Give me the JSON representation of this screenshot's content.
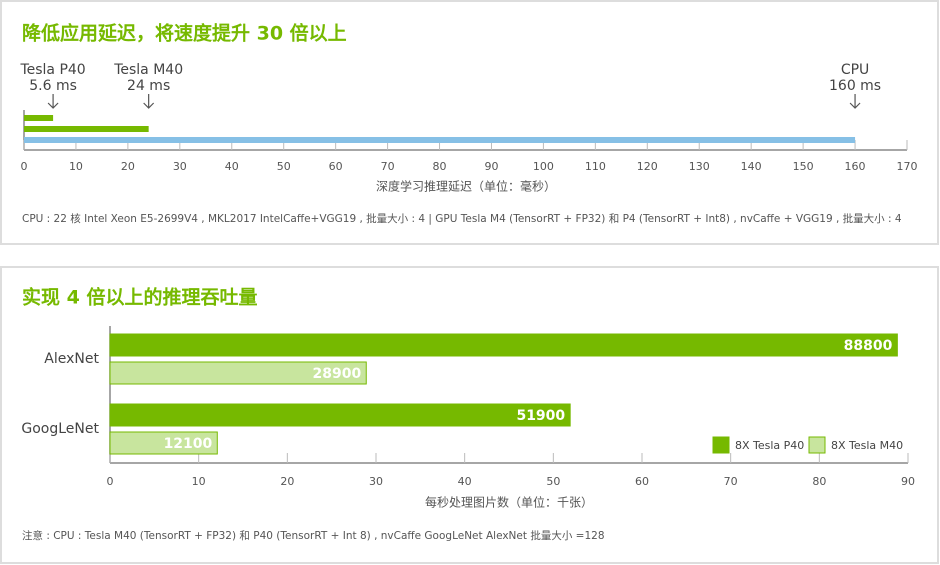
{
  "chart_data": [
    {
      "type": "bar",
      "orientation": "horizontal",
      "title": "降低应用延迟，将速度提升 30 倍以上",
      "categories": [
        "Tesla P40",
        "Tesla M40",
        "CPU"
      ],
      "values": [
        5.6,
        24,
        160
      ],
      "value_labels": [
        "5.6 ms",
        "24 ms",
        "160 ms"
      ],
      "colors": [
        "#76b900",
        "#76b900",
        "#86c0e6"
      ],
      "xlim": [
        0,
        170
      ],
      "xticks": [
        0,
        10,
        20,
        30,
        40,
        50,
        60,
        70,
        80,
        90,
        100,
        110,
        120,
        130,
        140,
        150,
        160,
        170
      ],
      "xlabel": "深度学习推理延迟（单位：毫秒）",
      "note": "CPU : 22 核 Intel Xeon E5-2699V4 , MKL2017 IntelCaffe+VGG19 , 批量大小 : 4 | GPU Tesla M4 (TensorRT + FP32) 和 P4 (TensorRT + Int8) , nvCaffe + VGG19 , 批量大小 : 4"
    },
    {
      "type": "bar",
      "orientation": "horizontal",
      "title": "实现 4 倍以上的推理吞吐量",
      "categories": [
        "AlexNet",
        "GoogLeNet"
      ],
      "series": [
        {
          "name": "8X Tesla P40",
          "color": "#76b900",
          "values": [
            88.8,
            51.9
          ],
          "value_labels": [
            "88800",
            "51900"
          ]
        },
        {
          "name": "8X Tesla M40",
          "color": "#c8e59e",
          "values": [
            28.9,
            12.1
          ],
          "value_labels": [
            "28900",
            "12100"
          ]
        }
      ],
      "xlim": [
        0,
        90
      ],
      "xticks": [
        0,
        10,
        20,
        30,
        40,
        50,
        60,
        70,
        80,
        90
      ],
      "xlabel": "每秒处理图片数（单位：千张）",
      "legend": "lower right",
      "note": "注意 : CPU : Tesla M40 (TensorRT + FP32) 和 P40 (TensorRT + Int 8) , nvCaffe GoogLeNet AlexNet 批量大小 =128"
    }
  ]
}
